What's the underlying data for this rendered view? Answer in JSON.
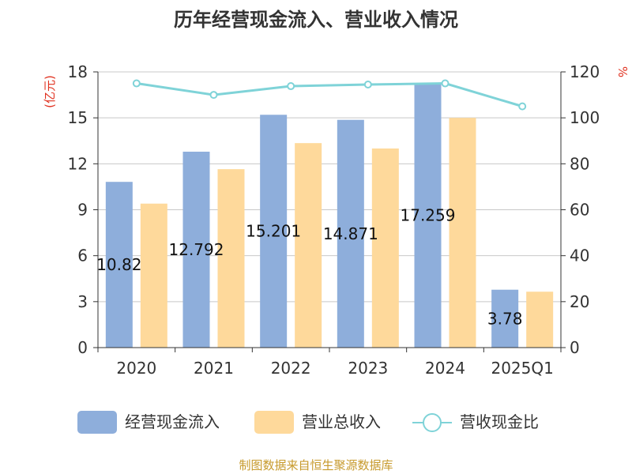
{
  "chart_data": {
    "type": "bar",
    "title": "历年经营现金流入、营业收入情况",
    "categories": [
      "2020",
      "2021",
      "2022",
      "2023",
      "2024",
      "2025Q1"
    ],
    "series": [
      {
        "name": "经营现金流入",
        "type": "bar",
        "axis": "left",
        "color": "#8eaedb",
        "values": [
          10.82,
          12.79,
          15.2,
          14.87,
          17.26,
          3.78
        ],
        "labels": [
          "10.82",
          "12.792",
          "15.201",
          "14.871",
          "17.259",
          "3.78"
        ]
      },
      {
        "name": "营业总收入",
        "type": "bar",
        "axis": "left",
        "color": "#fed99b",
        "values": [
          9.4,
          11.65,
          13.35,
          13.0,
          15.0,
          3.65
        ]
      },
      {
        "name": "营收现金比",
        "type": "line",
        "axis": "right",
        "color": "#7fd3d8",
        "values": [
          115,
          110,
          113.8,
          114.5,
          115,
          105
        ]
      }
    ],
    "y_left": {
      "label": "(亿元)",
      "ticks": [
        "0",
        "3",
        "6",
        "9",
        "12",
        "15",
        "18"
      ],
      "lim": [
        0,
        18
      ]
    },
    "y_right": {
      "label": "%",
      "ticks": [
        "0",
        "20",
        "40",
        "60",
        "80",
        "100",
        "120"
      ],
      "lim": [
        0,
        120
      ]
    },
    "grid": true,
    "legend_position": "bottom"
  },
  "source": "制图数据来自恒生聚源数据库"
}
